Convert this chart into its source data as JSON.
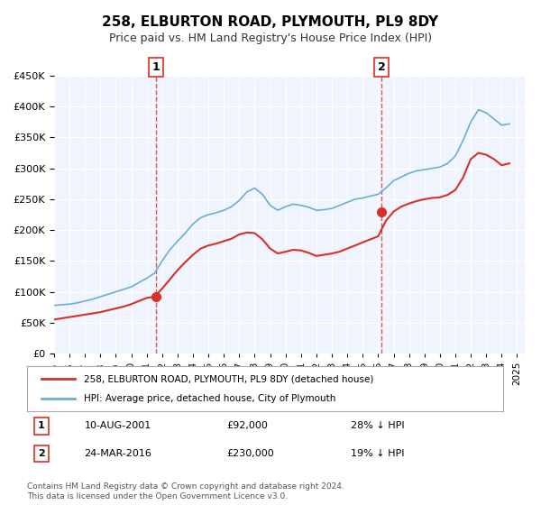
{
  "title": "258, ELBURTON ROAD, PLYMOUTH, PL9 8DY",
  "subtitle": "Price paid vs. HM Land Registry's House Price Index (HPI)",
  "legend_line1": "258, ELBURTON ROAD, PLYMOUTH, PL9 8DY (detached house)",
  "legend_line2": "HPI: Average price, detached house, City of Plymouth",
  "sale1_date": "10-AUG-2001",
  "sale1_price": 92000,
  "sale1_label": "28% ↓ HPI",
  "sale2_date": "24-MAR-2016",
  "sale2_price": 230000,
  "sale2_label": "19% ↓ HPI",
  "footnote1": "Contains HM Land Registry data © Crown copyright and database right 2024.",
  "footnote2": "This data is licensed under the Open Government Licence v3.0.",
  "hpi_color": "#6baed6",
  "property_color": "#d73027",
  "vline_color": "#d73027",
  "background_color": "#f0f4ff",
  "ylim": [
    0,
    450000
  ],
  "yticks": [
    0,
    50000,
    100000,
    150000,
    200000,
    250000,
    300000,
    350000,
    400000,
    450000
  ],
  "xlim_start": 1995.0,
  "xlim_end": 2025.5,
  "sale1_x": 2001.6,
  "sale2_x": 2016.23,
  "hpi_x": [
    1995.0,
    1995.5,
    1996.0,
    1996.5,
    1997.0,
    1997.5,
    1998.0,
    1998.5,
    1999.0,
    1999.5,
    2000.0,
    2000.5,
    2001.0,
    2001.5,
    2002.0,
    2002.5,
    2003.0,
    2003.5,
    2004.0,
    2004.5,
    2005.0,
    2005.5,
    2006.0,
    2006.5,
    2007.0,
    2007.5,
    2008.0,
    2008.5,
    2009.0,
    2009.5,
    2010.0,
    2010.5,
    2011.0,
    2011.5,
    2012.0,
    2012.5,
    2013.0,
    2013.5,
    2014.0,
    2014.5,
    2015.0,
    2015.5,
    2016.0,
    2016.5,
    2017.0,
    2017.5,
    2018.0,
    2018.5,
    2019.0,
    2019.5,
    2020.0,
    2020.5,
    2021.0,
    2021.5,
    2022.0,
    2022.5,
    2023.0,
    2023.5,
    2024.0,
    2024.5
  ],
  "hpi_y": [
    78000,
    79000,
    80000,
    82000,
    85000,
    88000,
    92000,
    96000,
    100000,
    104000,
    108000,
    115000,
    122000,
    130000,
    150000,
    168000,
    182000,
    195000,
    210000,
    220000,
    225000,
    228000,
    232000,
    238000,
    248000,
    262000,
    268000,
    258000,
    240000,
    232000,
    238000,
    242000,
    240000,
    237000,
    232000,
    233000,
    235000,
    240000,
    245000,
    250000,
    252000,
    255000,
    258000,
    268000,
    280000,
    286000,
    292000,
    296000,
    298000,
    300000,
    302000,
    308000,
    320000,
    345000,
    375000,
    395000,
    390000,
    380000,
    370000,
    372000
  ],
  "prop_x": [
    1995.0,
    1995.5,
    1996.0,
    1996.5,
    1997.0,
    1997.5,
    1998.0,
    1998.5,
    1999.0,
    1999.5,
    2000.0,
    2000.5,
    2001.0,
    2001.5,
    2002.0,
    2002.5,
    2003.0,
    2003.5,
    2004.0,
    2004.5,
    2005.0,
    2005.5,
    2006.0,
    2006.5,
    2007.0,
    2007.5,
    2008.0,
    2008.5,
    2009.0,
    2009.5,
    2010.0,
    2010.5,
    2011.0,
    2011.5,
    2012.0,
    2012.5,
    2013.0,
    2013.5,
    2014.0,
    2014.5,
    2015.0,
    2015.5,
    2016.0,
    2016.5,
    2017.0,
    2017.5,
    2018.0,
    2018.5,
    2019.0,
    2019.5,
    2020.0,
    2020.5,
    2021.0,
    2021.5,
    2022.0,
    2022.5,
    2023.0,
    2023.5,
    2024.0,
    2024.5
  ],
  "prop_y": [
    55000,
    57000,
    59000,
    61000,
    63000,
    65000,
    67000,
    70000,
    73000,
    76000,
    80000,
    85000,
    90000,
    92000,
    105000,
    120000,
    135000,
    148000,
    160000,
    170000,
    175000,
    178000,
    182000,
    186000,
    193000,
    196000,
    195000,
    185000,
    170000,
    162000,
    165000,
    168000,
    167000,
    163000,
    158000,
    160000,
    162000,
    165000,
    170000,
    175000,
    180000,
    185000,
    190000,
    215000,
    230000,
    238000,
    243000,
    247000,
    250000,
    252000,
    253000,
    257000,
    265000,
    285000,
    315000,
    325000,
    322000,
    315000,
    305000,
    308000
  ]
}
